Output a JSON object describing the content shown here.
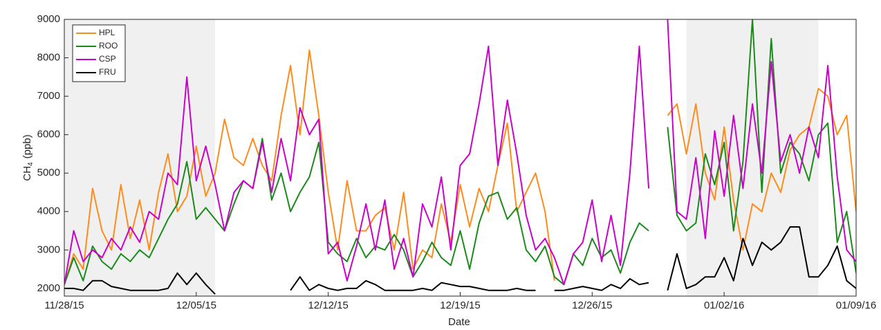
{
  "chart_data": {
    "type": "line",
    "xlabel": "Date",
    "ylabel": [
      "CH",
      "4",
      "(ppb)"
    ],
    "xlim": [
      0,
      42
    ],
    "xticks": [
      {
        "value": 0,
        "label": "11/28/15"
      },
      {
        "value": 7,
        "label": "12/05/15"
      },
      {
        "value": 14,
        "label": "12/12/15"
      },
      {
        "value": 21,
        "label": "12/19/15"
      },
      {
        "value": 28,
        "label": "12/26/15"
      },
      {
        "value": 35,
        "label": "01/02/16"
      },
      {
        "value": 42,
        "label": "01/09/16"
      }
    ],
    "ylim": [
      1800,
      9000
    ],
    "yticks": [
      2000,
      3000,
      4000,
      5000,
      6000,
      7000,
      8000,
      9000
    ],
    "shaded_spans": [
      [
        0,
        8
      ],
      [
        33,
        40
      ]
    ],
    "legend": "upper left",
    "x": [
      0,
      0.5,
      1,
      1.5,
      2,
      2.5,
      3,
      3.5,
      4,
      4.5,
      5,
      5.5,
      6,
      6.5,
      7,
      7.5,
      8,
      8.5,
      9,
      9.5,
      10,
      10.5,
      11,
      11.5,
      12,
      12.5,
      13,
      13.5,
      14,
      14.5,
      15,
      15.5,
      16,
      16.5,
      17,
      17.5,
      18,
      18.5,
      19,
      19.5,
      20,
      20.5,
      21,
      21.5,
      22,
      22.5,
      23,
      23.5,
      24,
      24.5,
      25,
      25.5,
      26,
      26.5,
      27,
      27.5,
      28,
      28.5,
      29,
      29.5,
      30,
      30.5,
      31,
      31.5,
      32,
      32.5,
      33,
      33.5,
      34,
      34.5,
      35,
      35.5,
      36,
      36.5,
      37,
      37.5,
      38,
      38.5,
      39,
      39.5,
      40,
      40.5,
      41,
      41.5,
      42
    ],
    "series": [
      {
        "name": "HPL",
        "color": "#ff8c1a",
        "values": [
          2100,
          2900,
          2500,
          4600,
          3500,
          3000,
          4700,
          3300,
          4300,
          3000,
          4500,
          5500,
          4000,
          4400,
          5700,
          4400,
          5000,
          6400,
          5400,
          5200,
          5900,
          5200,
          4800,
          6500,
          7800,
          6000,
          8200,
          6500,
          4500,
          3000,
          4800,
          3500,
          3500,
          3900,
          4100,
          3000,
          4500,
          2500,
          3000,
          2800,
          4200,
          3200,
          4700,
          3600,
          4600,
          4000,
          5200,
          6300,
          4000,
          4500,
          5000,
          4000,
          2200,
          null,
          null,
          null,
          null,
          null,
          null,
          null,
          null,
          null,
          null,
          null,
          6500,
          6800,
          5500,
          6800,
          5000,
          4300,
          6200,
          4300,
          3000,
          4200,
          4000,
          5000,
          4500,
          5600,
          6000,
          6200,
          7200,
          7000,
          6000,
          6500,
          4000
        ]
      },
      {
        "name": "ROO",
        "color": "#1a8a1a",
        "values": [
          2100,
          2800,
          2200,
          3100,
          2700,
          2500,
          2900,
          2700,
          3000,
          2800,
          3300,
          3800,
          4200,
          5300,
          3800,
          4100,
          3800,
          3500,
          4200,
          4800,
          4600,
          5900,
          4300,
          5000,
          4000,
          4500,
          4900,
          5800,
          3200,
          2900,
          2700,
          3300,
          2800,
          3100,
          3000,
          3400,
          3000,
          2300,
          2700,
          3200,
          2800,
          2600,
          3500,
          2500,
          3700,
          4400,
          4500,
          3800,
          4100,
          3000,
          2700,
          3100,
          2300,
          2100,
          2900,
          2600,
          3300,
          2800,
          3000,
          2400,
          3200,
          3700,
          3500,
          null,
          6200,
          3900,
          3500,
          3700,
          5500,
          4700,
          5800,
          3500,
          5300,
          9000,
          4500,
          8500,
          5000,
          5800,
          5500,
          4800,
          6000,
          6300,
          3200,
          4000,
          2400
        ]
      },
      {
        "name": "CSP",
        "color": "#cc00cc",
        "values": [
          2100,
          3500,
          2700,
          3000,
          2800,
          3300,
          3000,
          3600,
          3200,
          4000,
          3800,
          5000,
          4700,
          7500,
          4800,
          5700,
          4700,
          3500,
          4500,
          4800,
          4600,
          5800,
          4500,
          5900,
          4800,
          6700,
          6000,
          6400,
          2900,
          3200,
          2200,
          3100,
          4200,
          3000,
          4300,
          2500,
          3300,
          2300,
          4200,
          3600,
          4900,
          3000,
          5200,
          5500,
          6800,
          8300,
          5200,
          6900,
          5500,
          3900,
          3000,
          3300,
          2800,
          2100,
          2900,
          3200,
          4300,
          2700,
          3900,
          2600,
          5000,
          8300,
          4600,
          null,
          9000,
          4000,
          3800,
          5400,
          3300,
          6100,
          4400,
          6500,
          4600,
          6800,
          5000,
          7900,
          5300,
          6000,
          5000,
          6200,
          5400,
          7800,
          4900,
          3000,
          2700
        ]
      },
      {
        "name": "FRU",
        "color": "#000000",
        "values": [
          2000,
          2000,
          1950,
          2200,
          2200,
          2050,
          2000,
          1950,
          1950,
          1950,
          1950,
          2000,
          2400,
          2100,
          2400,
          2100,
          1850,
          null,
          null,
          null,
          null,
          null,
          null,
          null,
          1950,
          2300,
          1950,
          2100,
          2000,
          1950,
          2000,
          2000,
          2200,
          2100,
          1950,
          1950,
          1950,
          1950,
          2000,
          1950,
          2150,
          2100,
          2050,
          2050,
          2000,
          1950,
          1950,
          1950,
          2000,
          1950,
          1950,
          null,
          1950,
          1950,
          2000,
          2050,
          2000,
          1950,
          2100,
          2000,
          2250,
          2100,
          2150,
          null,
          1950,
          2900,
          2000,
          2100,
          2300,
          2300,
          2800,
          2200,
          3300,
          2600,
          3200,
          3000,
          3200,
          3600,
          3600,
          2300,
          2300,
          2600,
          3100,
          2200,
          2000
        ]
      }
    ]
  }
}
